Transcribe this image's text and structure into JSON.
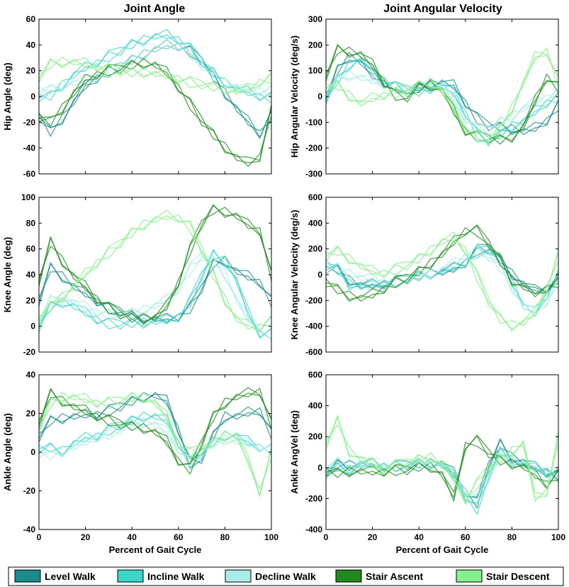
{
  "figure": {
    "column_titles": [
      "Joint Angle",
      "Joint Angular Velocity"
    ],
    "xlabel": "Percent of Gait Cycle"
  },
  "legend": {
    "items": [
      {
        "label": "Level Walk",
        "color": "#1a8a8a"
      },
      {
        "label": "Incline Walk",
        "color": "#3ad6cc"
      },
      {
        "label": "Decline Walk",
        "color": "#a9ece8"
      },
      {
        "label": "Stair Ascent",
        "color": "#1e8a1e"
      },
      {
        "label": "Stair Descent",
        "color": "#86f08c"
      }
    ]
  },
  "chart_data": [
    {
      "type": "line",
      "id": "hip-angle",
      "title": "Joint Angle",
      "ylabel": "Hip Angle (deg)",
      "xlabel": "",
      "xlim": [
        0,
        100
      ],
      "ylim": [
        -60,
        60
      ],
      "xticks": [
        0,
        20,
        40,
        60,
        80,
        100
      ],
      "yticks": [
        -60,
        -40,
        -20,
        0,
        20,
        40,
        60
      ],
      "x": [
        0,
        5,
        10,
        15,
        20,
        25,
        30,
        35,
        40,
        45,
        50,
        55,
        60,
        65,
        70,
        75,
        80,
        85,
        90,
        95,
        100
      ],
      "series": [
        {
          "name": "Level Walk",
          "values": [
            -15,
            -28,
            -18,
            -5,
            8,
            15,
            20,
            24,
            28,
            32,
            36,
            39,
            40,
            36,
            28,
            15,
            2,
            -10,
            -20,
            -28,
            -14
          ]
        },
        {
          "name": "Incline Walk",
          "values": [
            0,
            0,
            8,
            16,
            22,
            27,
            32,
            36,
            40,
            43,
            46,
            47,
            45,
            38,
            28,
            18,
            10,
            5,
            3,
            1,
            0
          ]
        },
        {
          "name": "Decline Walk",
          "values": [
            5,
            5,
            8,
            10,
            12,
            16,
            20,
            24,
            28,
            32,
            36,
            39,
            40,
            35,
            25,
            15,
            10,
            7,
            5,
            5,
            5
          ]
        },
        {
          "name": "Stair Ascent",
          "values": [
            -15,
            -20,
            -10,
            2,
            12,
            18,
            21,
            22,
            24,
            25,
            24,
            18,
            8,
            -5,
            -18,
            -30,
            -40,
            -48,
            -52,
            -46,
            -10
          ]
        },
        {
          "name": "Stair Descent",
          "values": [
            15,
            25,
            26,
            26,
            25,
            24,
            22,
            20,
            18,
            18,
            17,
            16,
            15,
            12,
            10,
            7,
            5,
            3,
            5,
            12,
            15
          ]
        }
      ]
    },
    {
      "type": "line",
      "id": "hip-velocity",
      "title": "Joint Angular Velocity",
      "ylabel": "Hip Angular Velocity (deg/s)",
      "xlabel": "",
      "xlim": [
        0,
        100
      ],
      "ylim": [
        -300,
        300
      ],
      "xticks": [
        0,
        20,
        40,
        60,
        80,
        100
      ],
      "yticks": [
        -300,
        -200,
        -100,
        0,
        100,
        200,
        300
      ],
      "x": [
        0,
        5,
        10,
        15,
        20,
        25,
        30,
        35,
        40,
        45,
        50,
        55,
        60,
        65,
        70,
        75,
        80,
        85,
        90,
        95,
        100
      ],
      "series": [
        {
          "name": "Level Walk",
          "values": [
            0,
            100,
            150,
            130,
            80,
            55,
            40,
            30,
            35,
            45,
            50,
            40,
            -20,
            -80,
            -110,
            -120,
            -130,
            -140,
            -125,
            -90,
            -30
          ]
        },
        {
          "name": "Incline Walk",
          "values": [
            -10,
            60,
            120,
            140,
            100,
            70,
            40,
            20,
            15,
            30,
            40,
            10,
            -60,
            -140,
            -170,
            -150,
            -120,
            -100,
            -60,
            -20,
            0
          ]
        },
        {
          "name": "Decline Walk",
          "values": [
            20,
            60,
            80,
            70,
            60,
            50,
            40,
            30,
            30,
            40,
            40,
            -20,
            -80,
            -120,
            -130,
            -100,
            -80,
            -50,
            -20,
            0,
            20
          ]
        },
        {
          "name": "Stair Ascent",
          "values": [
            80,
            180,
            170,
            160,
            120,
            60,
            10,
            0,
            30,
            40,
            20,
            -60,
            -130,
            -150,
            -160,
            -170,
            -160,
            -120,
            -20,
            80,
            40
          ]
        },
        {
          "name": "Stair Descent",
          "values": [
            40,
            40,
            0,
            -30,
            -10,
            10,
            20,
            30,
            40,
            50,
            20,
            -50,
            -120,
            -150,
            -160,
            -130,
            -50,
            50,
            150,
            180,
            60
          ]
        }
      ]
    },
    {
      "type": "line",
      "id": "knee-angle",
      "title": "",
      "ylabel": "Knee Angle (deg)",
      "xlabel": "",
      "xlim": [
        0,
        100
      ],
      "ylim": [
        -20,
        100
      ],
      "xticks": [
        0,
        20,
        40,
        60,
        80,
        100
      ],
      "yticks": [
        -20,
        0,
        20,
        40,
        60,
        80,
        100
      ],
      "x": [
        0,
        5,
        10,
        15,
        20,
        25,
        30,
        35,
        40,
        45,
        50,
        55,
        60,
        65,
        70,
        75,
        80,
        85,
        90,
        95,
        100
      ],
      "series": [
        {
          "name": "Level Walk",
          "values": [
            20,
            45,
            38,
            30,
            25,
            20,
            15,
            12,
            8,
            6,
            5,
            5,
            8,
            15,
            30,
            48,
            50,
            42,
            38,
            35,
            20
          ]
        },
        {
          "name": "Incline Walk",
          "values": [
            0,
            15,
            18,
            15,
            10,
            6,
            3,
            2,
            2,
            2,
            3,
            4,
            8,
            20,
            40,
            55,
            50,
            35,
            10,
            -5,
            -5
          ]
        },
        {
          "name": "Decline Walk",
          "values": [
            5,
            20,
            22,
            18,
            14,
            12,
            10,
            10,
            10,
            12,
            15,
            20,
            30,
            45,
            55,
            50,
            40,
            20,
            5,
            0,
            5
          ]
        },
        {
          "name": "Stair Ascent",
          "values": [
            35,
            65,
            50,
            38,
            30,
            22,
            15,
            10,
            6,
            5,
            6,
            15,
            35,
            60,
            80,
            90,
            88,
            85,
            78,
            75,
            40
          ]
        },
        {
          "name": "Stair Descent",
          "values": [
            5,
            15,
            22,
            30,
            40,
            50,
            58,
            65,
            72,
            78,
            82,
            85,
            85,
            78,
            60,
            40,
            20,
            5,
            0,
            0,
            5
          ]
        }
      ]
    },
    {
      "type": "line",
      "id": "knee-velocity",
      "title": "",
      "ylabel": "Knee Angular Velocity (deg/s)",
      "xlabel": "",
      "xlim": [
        0,
        100
      ],
      "ylim": [
        -600,
        600
      ],
      "xticks": [
        0,
        20,
        40,
        60,
        80,
        100
      ],
      "yticks": [
        -600,
        -400,
        -200,
        0,
        200,
        400,
        600
      ],
      "x": [
        0,
        5,
        10,
        15,
        20,
        25,
        30,
        35,
        40,
        45,
        50,
        55,
        60,
        65,
        70,
        75,
        80,
        85,
        90,
        95,
        100
      ],
      "series": [
        {
          "name": "Level Walk",
          "values": [
            50,
            40,
            -50,
            -90,
            -80,
            -60,
            -40,
            -30,
            -20,
            0,
            10,
            40,
            100,
            200,
            210,
            120,
            0,
            -80,
            -130,
            -100,
            -20
          ]
        },
        {
          "name": "Incline Walk",
          "values": [
            100,
            30,
            -80,
            -100,
            -90,
            -70,
            -50,
            -30,
            -10,
            0,
            20,
            50,
            100,
            180,
            200,
            100,
            -50,
            -250,
            -300,
            -150,
            0
          ]
        },
        {
          "name": "Decline Walk",
          "values": [
            50,
            50,
            0,
            -30,
            -40,
            -50,
            -40,
            -30,
            -20,
            0,
            30,
            80,
            150,
            200,
            150,
            50,
            -100,
            -250,
            -300,
            -200,
            -50
          ]
        },
        {
          "name": "Stair Ascent",
          "values": [
            -50,
            -120,
            -170,
            -190,
            -160,
            -100,
            -50,
            -20,
            20,
            80,
            150,
            250,
            350,
            350,
            250,
            100,
            -50,
            -100,
            -150,
            -100,
            -50
          ]
        },
        {
          "name": "Stair Descent",
          "values": [
            150,
            180,
            120,
            60,
            20,
            20,
            50,
            80,
            120,
            180,
            250,
            280,
            200,
            0,
            -200,
            -350,
            -400,
            -380,
            -300,
            -100,
            150
          ]
        }
      ]
    },
    {
      "type": "line",
      "id": "ankle-angle",
      "title": "",
      "ylabel": "Ankle Angle (deg)",
      "xlabel": "Percent of Gait Cycle",
      "xlim": [
        0,
        100
      ],
      "ylim": [
        -40,
        40
      ],
      "xticks": [
        0,
        20,
        40,
        60,
        80,
        100
      ],
      "yticks": [
        -40,
        -20,
        0,
        20,
        40
      ],
      "x": [
        0,
        5,
        10,
        15,
        20,
        25,
        30,
        35,
        40,
        45,
        50,
        55,
        60,
        65,
        70,
        75,
        80,
        85,
        90,
        95,
        100
      ],
      "series": [
        {
          "name": "Level Walk",
          "values": [
            8,
            16,
            17,
            18,
            19,
            20,
            22,
            24,
            26,
            28,
            29,
            26,
            12,
            -5,
            -3,
            8,
            18,
            18,
            20,
            22,
            10
          ]
        },
        {
          "name": "Incline Walk",
          "values": [
            2,
            2,
            0,
            4,
            7,
            9,
            12,
            14,
            16,
            18,
            18,
            16,
            5,
            -5,
            0,
            5,
            8,
            8,
            5,
            3,
            2
          ]
        },
        {
          "name": "Decline Walk",
          "values": [
            0,
            -2,
            0,
            2,
            5,
            8,
            10,
            12,
            14,
            15,
            14,
            10,
            2,
            -4,
            0,
            4,
            6,
            5,
            4,
            3,
            2
          ]
        },
        {
          "name": "Stair Ascent",
          "values": [
            15,
            30,
            26,
            23,
            21,
            19,
            17,
            15,
            13,
            12,
            10,
            5,
            -4,
            -8,
            5,
            18,
            25,
            28,
            30,
            32,
            15
          ]
        },
        {
          "name": "Stair Descent",
          "values": [
            12,
            25,
            28,
            28,
            27,
            26,
            26,
            27,
            28,
            28,
            25,
            18,
            5,
            0,
            2,
            5,
            8,
            8,
            -5,
            -20,
            0
          ]
        }
      ]
    },
    {
      "type": "line",
      "id": "ankle-velocity",
      "title": "",
      "ylabel": "Ankle AngVel (deg)",
      "xlabel": "Percent of Gait Cycle",
      "xlim": [
        0,
        100
      ],
      "ylim": [
        -400,
        600
      ],
      "xticks": [
        0,
        20,
        40,
        60,
        80,
        100
      ],
      "yticks": [
        -400,
        -200,
        0,
        200,
        400,
        600
      ],
      "x": [
        0,
        5,
        10,
        15,
        20,
        25,
        30,
        35,
        40,
        45,
        50,
        55,
        60,
        65,
        70,
        75,
        80,
        85,
        90,
        95,
        100
      ],
      "series": [
        {
          "name": "Level Walk",
          "values": [
            -20,
            20,
            10,
            20,
            20,
            15,
            20,
            25,
            25,
            25,
            20,
            -40,
            -150,
            -220,
            20,
            150,
            60,
            30,
            0,
            -20,
            -40
          ]
        },
        {
          "name": "Incline Walk",
          "values": [
            -40,
            0,
            -20,
            10,
            15,
            15,
            15,
            20,
            20,
            20,
            10,
            -60,
            -180,
            -260,
            -50,
            100,
            40,
            10,
            -10,
            -30,
            -50
          ]
        },
        {
          "name": "Decline Walk",
          "values": [
            0,
            30,
            20,
            20,
            20,
            20,
            20,
            20,
            25,
            25,
            15,
            -50,
            -150,
            -200,
            -60,
            60,
            40,
            20,
            0,
            -10,
            -20
          ]
        },
        {
          "name": "Stair Ascent",
          "values": [
            -20,
            -40,
            -30,
            -30,
            -30,
            -20,
            -10,
            -10,
            0,
            0,
            -50,
            -200,
            150,
            180,
            100,
            40,
            20,
            0,
            -50,
            -100,
            -40
          ]
        },
        {
          "name": "Stair Descent",
          "values": [
            150,
            300,
            100,
            50,
            20,
            0,
            20,
            40,
            50,
            60,
            20,
            -80,
            -200,
            -100,
            0,
            50,
            100,
            150,
            -200,
            -150,
            200
          ]
        }
      ]
    }
  ]
}
